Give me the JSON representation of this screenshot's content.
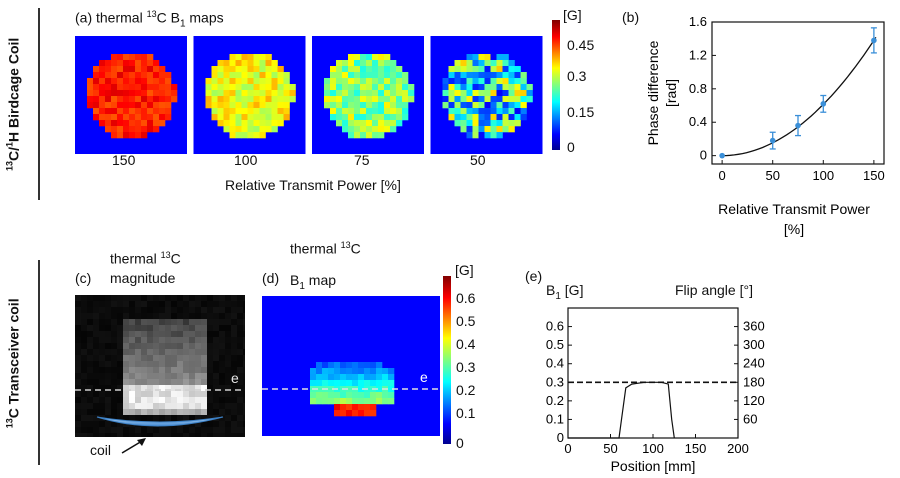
{
  "row1_label": "13C/1H Birdcage Coil",
  "row1_label_pre": "13",
  "row1_label_mid": "C/",
  "row1_label_sup": "1",
  "row1_label_post": "H Birdcage Coil",
  "row2_label_pre": "13",
  "row2_label_post": "C Transceiver coil",
  "panel_a": {
    "tag": "(a) thermal ",
    "sup": "13",
    "rest": "C B",
    "sub": "1",
    "tail": " maps",
    "power_labels": [
      "150",
      "100",
      "75",
      "50"
    ],
    "xlabel": "Relative Transmit Power [%]",
    "colorbar_unit": "[G]",
    "colorbar_ticks": [
      "0.45",
      "0.3",
      "0.15",
      "0"
    ]
  },
  "panel_b": {
    "tag": "(b)",
    "ylabel_1": "Phase difference",
    "ylabel_2": "[rad]",
    "xlabel_1": "Relative Transmit Power",
    "xlabel_2": "[%]"
  },
  "panel_c": {
    "tag": "(c)",
    "title_1": "thermal ",
    "title_sup": "13",
    "title_1b": "C",
    "title_2": "magnitude",
    "line_label": "e",
    "coil_label": "coil"
  },
  "panel_d": {
    "tag": "(d)",
    "title_1": "thermal ",
    "title_sup": "13",
    "title_1b": "C",
    "title_2": "B",
    "title_sub": "1",
    "title_2b": " map",
    "line_label": "e",
    "colorbar_unit": "[G]",
    "colorbar_ticks": [
      "0.6",
      "0.5",
      "0.4",
      "0.3",
      "0.2",
      "0.1",
      "0"
    ]
  },
  "panel_e": {
    "tag": "(e)",
    "left_label": "B",
    "left_sub": "1",
    "left_unit": " [G]",
    "right_label": "Flip angle  [°]",
    "xlabel": "Position [mm]"
  },
  "chart_data": [
    {
      "type": "scatter",
      "title": "(b)",
      "xlabel": "Relative Transmit Power [%]",
      "ylabel": "Phase difference [rad]",
      "x": [
        0,
        50,
        75,
        100,
        150
      ],
      "y": [
        0.0,
        0.18,
        0.36,
        0.62,
        1.38
      ],
      "yerr": [
        0.0,
        0.1,
        0.12,
        0.1,
        0.15
      ],
      "fit": "quadratic",
      "xticks": [
        "0",
        "50",
        "100",
        "150"
      ],
      "yticks": [
        "0",
        "0.4",
        "0.8",
        "1.2",
        "1.6"
      ],
      "xlim": [
        -10,
        160
      ],
      "ylim": [
        -0.1,
        1.6
      ]
    },
    {
      "type": "line",
      "title": "(e)",
      "xlabel": "Position [mm]",
      "ylabel": "B1 [G]",
      "y2label": "Flip angle [°]",
      "profile_x": [
        0,
        60,
        63,
        68,
        75,
        90,
        110,
        118,
        122,
        125
      ],
      "profile_y": [
        0,
        0,
        0.1,
        0.27,
        0.29,
        0.3,
        0.3,
        0.29,
        0.1,
        0
      ],
      "reference_line_y": 0.3,
      "xticks": [
        "0",
        "50",
        "100",
        "150",
        "200"
      ],
      "yticks": [
        "0",
        "0.1",
        "0.2",
        "0.3",
        "0.4",
        "0.5",
        "0.6"
      ],
      "y2ticks": [
        "60",
        "120",
        "180",
        "240",
        "300",
        "360"
      ],
      "xlim": [
        0,
        200
      ],
      "ylim": [
        0,
        0.7
      ]
    }
  ]
}
